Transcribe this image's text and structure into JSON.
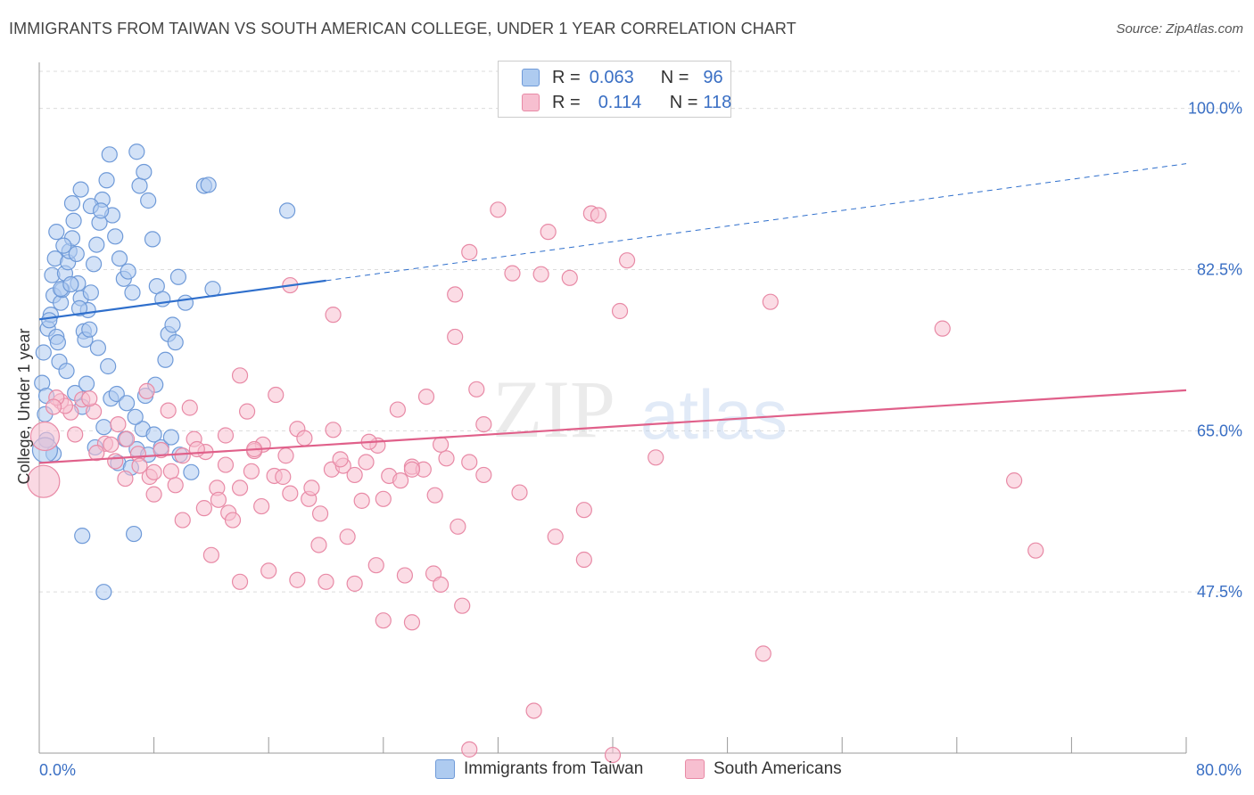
{
  "title": "IMMIGRANTS FROM TAIWAN VS SOUTH AMERICAN COLLEGE, UNDER 1 YEAR CORRELATION CHART",
  "source": "Source: ZipAtlas.com",
  "watermark": {
    "zip": "ZIP",
    "atlas": "atlas"
  },
  "legend": {
    "rows": [
      {
        "r_label": "R =",
        "r_value": "0.063",
        "n_label": "N =",
        "n_value": "96",
        "color": "#aecbf0",
        "border": "#6f9ad8"
      },
      {
        "r_label": "R =",
        "r_value": "0.114",
        "n_label": "N =",
        "n_value": "118",
        "color": "#f7bfd0",
        "border": "#e88aa6"
      }
    ]
  },
  "bottom_legend": [
    {
      "label": "Immigrants from Taiwan",
      "color": "#aecbf0",
      "border": "#6f9ad8"
    },
    {
      "label": "South Americans",
      "color": "#f7bfd0",
      "border": "#e88aa6"
    }
  ],
  "chart_data": {
    "type": "scatter",
    "title": "IMMIGRANTS FROM TAIWAN VS SOUTH AMERICAN COLLEGE, UNDER 1 YEAR CORRELATION CHART",
    "xlabel": "",
    "ylabel": "College, Under 1 year",
    "xlim": [
      0,
      80
    ],
    "ylim": [
      30,
      105
    ],
    "x_ticks": [
      {
        "value": 0,
        "label": "0.0%"
      },
      {
        "value": 80,
        "label": "80.0%"
      }
    ],
    "y_ticks": [
      {
        "value": 47.5,
        "label": "47.5%"
      },
      {
        "value": 65.0,
        "label": "65.0%"
      },
      {
        "value": 82.5,
        "label": "82.5%"
      },
      {
        "value": 100.0,
        "label": "100.0%"
      }
    ],
    "grid": true,
    "legend_position": "top-center",
    "series": [
      {
        "name": "Immigrants from Taiwan",
        "color": "#6f9ad8",
        "fill": "#aecbf0",
        "trend": {
          "x0": 0,
          "y0": 77.1,
          "x1": 20,
          "y1": 81.3,
          "dashed_to_x": 80,
          "dashed_to_y": 94.0,
          "color": "#2f6fcc"
        },
        "points": [
          [
            0.2,
            70.2
          ],
          [
            0.3,
            73.5
          ],
          [
            0.5,
            68.8
          ],
          [
            0.4,
            66.8
          ],
          [
            0.6,
            76.1
          ],
          [
            0.8,
            77.6
          ],
          [
            0.9,
            81.9
          ],
          [
            1.1,
            83.7
          ],
          [
            1.0,
            79.7
          ],
          [
            1.2,
            75.2
          ],
          [
            1.3,
            74.6
          ],
          [
            1.4,
            72.5
          ],
          [
            1.5,
            78.9
          ],
          [
            1.6,
            80.3
          ],
          [
            1.8,
            82.1
          ],
          [
            2.0,
            83.3
          ],
          [
            2.1,
            84.5
          ],
          [
            2.3,
            85.9
          ],
          [
            2.4,
            87.8
          ],
          [
            2.6,
            84.2
          ],
          [
            2.7,
            81.0
          ],
          [
            2.9,
            79.4
          ],
          [
            3.1,
            75.8
          ],
          [
            3.2,
            74.9
          ],
          [
            3.4,
            78.1
          ],
          [
            3.6,
            80.0
          ],
          [
            3.8,
            83.1
          ],
          [
            4.0,
            85.2
          ],
          [
            4.2,
            87.6
          ],
          [
            4.4,
            90.1
          ],
          [
            4.7,
            92.2
          ],
          [
            4.9,
            95.0
          ],
          [
            5.1,
            88.4
          ],
          [
            5.3,
            86.1
          ],
          [
            5.6,
            83.7
          ],
          [
            5.9,
            81.5
          ],
          [
            6.2,
            82.3
          ],
          [
            6.5,
            80.0
          ],
          [
            6.8,
            95.3
          ],
          [
            7.0,
            91.6
          ],
          [
            7.3,
            93.1
          ],
          [
            7.6,
            90.0
          ],
          [
            7.9,
            85.8
          ],
          [
            8.2,
            80.7
          ],
          [
            8.6,
            79.3
          ],
          [
            9.0,
            75.5
          ],
          [
            9.3,
            76.5
          ],
          [
            9.7,
            81.7
          ],
          [
            10.2,
            78.9
          ],
          [
            11.5,
            91.6
          ],
          [
            11.8,
            91.7
          ],
          [
            12.1,
            80.4
          ],
          [
            17.3,
            88.9
          ],
          [
            0.5,
            64.0
          ],
          [
            1.0,
            62.5
          ],
          [
            1.9,
            71.5
          ],
          [
            2.5,
            69.1
          ],
          [
            3.0,
            67.6
          ],
          [
            3.3,
            70.1
          ],
          [
            3.9,
            63.2
          ],
          [
            4.5,
            65.4
          ],
          [
            5.0,
            68.5
          ],
          [
            5.5,
            61.5
          ],
          [
            6.0,
            64.1
          ],
          [
            6.4,
            61.0
          ],
          [
            6.8,
            63.0
          ],
          [
            7.2,
            65.2
          ],
          [
            7.6,
            62.4
          ],
          [
            8.0,
            64.6
          ],
          [
            8.5,
            63.2
          ],
          [
            9.2,
            64.3
          ],
          [
            9.8,
            62.4
          ],
          [
            10.6,
            60.5
          ],
          [
            3.0,
            53.6
          ],
          [
            6.6,
            53.8
          ],
          [
            4.5,
            47.5
          ],
          [
            0.7,
            77.0
          ],
          [
            1.5,
            80.4
          ],
          [
            2.2,
            80.9
          ],
          [
            2.8,
            78.3
          ],
          [
            3.5,
            76.0
          ],
          [
            4.1,
            74.0
          ],
          [
            4.8,
            72.0
          ],
          [
            5.4,
            69.0
          ],
          [
            6.1,
            68.0
          ],
          [
            6.7,
            66.5
          ],
          [
            7.4,
            68.8
          ],
          [
            8.1,
            70.0
          ],
          [
            8.8,
            72.7
          ],
          [
            9.5,
            74.6
          ],
          [
            1.2,
            86.6
          ],
          [
            1.7,
            85.1
          ],
          [
            2.3,
            89.7
          ],
          [
            2.9,
            91.2
          ],
          [
            3.6,
            89.4
          ],
          [
            4.3,
            88.9
          ]
        ],
        "large_points": [
          [
            0.4,
            62.9,
            14
          ]
        ]
      },
      {
        "name": "South Americans",
        "color": "#e88aa6",
        "fill": "#f7bfd0",
        "trend": {
          "x0": 0,
          "y0": 61.5,
          "x1": 80,
          "y1": 69.4,
          "color": "#e0608a"
        },
        "points": [
          [
            1.5,
            68.2
          ],
          [
            2.2,
            67.0
          ],
          [
            3.0,
            68.4
          ],
          [
            3.8,
            67.1
          ],
          [
            4.6,
            63.6
          ],
          [
            5.3,
            61.7
          ],
          [
            6.1,
            64.1
          ],
          [
            6.9,
            62.5
          ],
          [
            7.7,
            60.0
          ],
          [
            8.5,
            62.9
          ],
          [
            9.2,
            60.6
          ],
          [
            10.0,
            62.3
          ],
          [
            10.8,
            64.1
          ],
          [
            11.6,
            62.7
          ],
          [
            12.4,
            58.8
          ],
          [
            13.2,
            56.1
          ],
          [
            14.0,
            58.8
          ],
          [
            14.8,
            60.6
          ],
          [
            15.6,
            63.5
          ],
          [
            16.4,
            60.1
          ],
          [
            17.2,
            62.3
          ],
          [
            18.0,
            65.2
          ],
          [
            18.8,
            57.6
          ],
          [
            19.6,
            56.0
          ],
          [
            20.4,
            60.8
          ],
          [
            21.2,
            61.2
          ],
          [
            22.0,
            60.2
          ],
          [
            22.8,
            61.6
          ],
          [
            23.6,
            63.4
          ],
          [
            24.4,
            60.1
          ],
          [
            25.2,
            59.6
          ],
          [
            26.0,
            61.1
          ],
          [
            26.8,
            60.8
          ],
          [
            27.6,
            58.0
          ],
          [
            28.4,
            62.0
          ],
          [
            29.2,
            54.6
          ],
          [
            30.0,
            61.6
          ],
          [
            8.0,
            60.5
          ],
          [
            10.5,
            67.5
          ],
          [
            12.5,
            57.5
          ],
          [
            13.5,
            55.3
          ],
          [
            15.5,
            56.8
          ],
          [
            17.5,
            58.2
          ],
          [
            19.5,
            52.6
          ],
          [
            21.5,
            53.5
          ],
          [
            23.5,
            50.4
          ],
          [
            25.5,
            49.3
          ],
          [
            27.5,
            49.5
          ],
          [
            29.5,
            46.0
          ],
          [
            31.0,
            60.2
          ],
          [
            33.5,
            58.3
          ],
          [
            36.0,
            53.5
          ],
          [
            38.0,
            51.0
          ],
          [
            28.0,
            48.3
          ],
          [
            26.0,
            44.2
          ],
          [
            24.0,
            44.4
          ],
          [
            22.0,
            48.4
          ],
          [
            20.0,
            48.6
          ],
          [
            18.0,
            48.8
          ],
          [
            16.0,
            49.8
          ],
          [
            14.0,
            48.6
          ],
          [
            12.0,
            51.5
          ],
          [
            10.0,
            55.3
          ],
          [
            8.0,
            58.1
          ],
          [
            6.0,
            59.8
          ],
          [
            4.0,
            62.6
          ],
          [
            2.5,
            64.6
          ],
          [
            1.8,
            67.7
          ],
          [
            1.2,
            68.6
          ],
          [
            1.0,
            67.6
          ],
          [
            3.5,
            68.5
          ],
          [
            5.5,
            65.7
          ],
          [
            7.5,
            69.3
          ],
          [
            9.0,
            67.2
          ],
          [
            11.0,
            63.0
          ],
          [
            13.0,
            61.3
          ],
          [
            15.0,
            62.8
          ],
          [
            17.0,
            60.0
          ],
          [
            19.0,
            58.8
          ],
          [
            21.0,
            61.9
          ],
          [
            23.0,
            63.8
          ],
          [
            25.0,
            67.3
          ],
          [
            27.0,
            68.7
          ],
          [
            29.0,
            75.2
          ],
          [
            30.5,
            69.5
          ],
          [
            33.0,
            82.1
          ],
          [
            32.0,
            89.0
          ],
          [
            30.0,
            84.4
          ],
          [
            35.5,
            86.6
          ],
          [
            38.5,
            88.6
          ],
          [
            40.5,
            78.0
          ],
          [
            41.0,
            83.5
          ],
          [
            37.0,
            81.6
          ],
          [
            35.0,
            82.0
          ],
          [
            31.0,
            65.7
          ],
          [
            28.0,
            63.5
          ],
          [
            26.0,
            60.8
          ],
          [
            24.0,
            57.6
          ],
          [
            22.5,
            57.4
          ],
          [
            20.5,
            65.1
          ],
          [
            18.5,
            64.2
          ],
          [
            16.5,
            68.9
          ],
          [
            14.5,
            67.1
          ],
          [
            13.0,
            64.5
          ],
          [
            11.5,
            56.6
          ],
          [
            9.5,
            59.1
          ],
          [
            7.0,
            61.2
          ],
          [
            5.0,
            63.5
          ],
          [
            17.5,
            80.8
          ],
          [
            20.5,
            77.6
          ],
          [
            29.0,
            79.8
          ],
          [
            34.5,
            34.6
          ],
          [
            30.0,
            30.4
          ],
          [
            40.0,
            29.8
          ],
          [
            50.5,
            40.8
          ],
          [
            51.0,
            79.0
          ],
          [
            63.0,
            76.1
          ],
          [
            68.0,
            59.6
          ],
          [
            69.5,
            52.0
          ],
          [
            43.0,
            62.1
          ],
          [
            38.0,
            56.4
          ],
          [
            39.0,
            88.4
          ],
          [
            15.0,
            63.0
          ],
          [
            14.0,
            71.0
          ]
        ],
        "large_points": [
          [
            0.3,
            59.5,
            18
          ],
          [
            0.4,
            64.4,
            16
          ]
        ]
      }
    ]
  }
}
